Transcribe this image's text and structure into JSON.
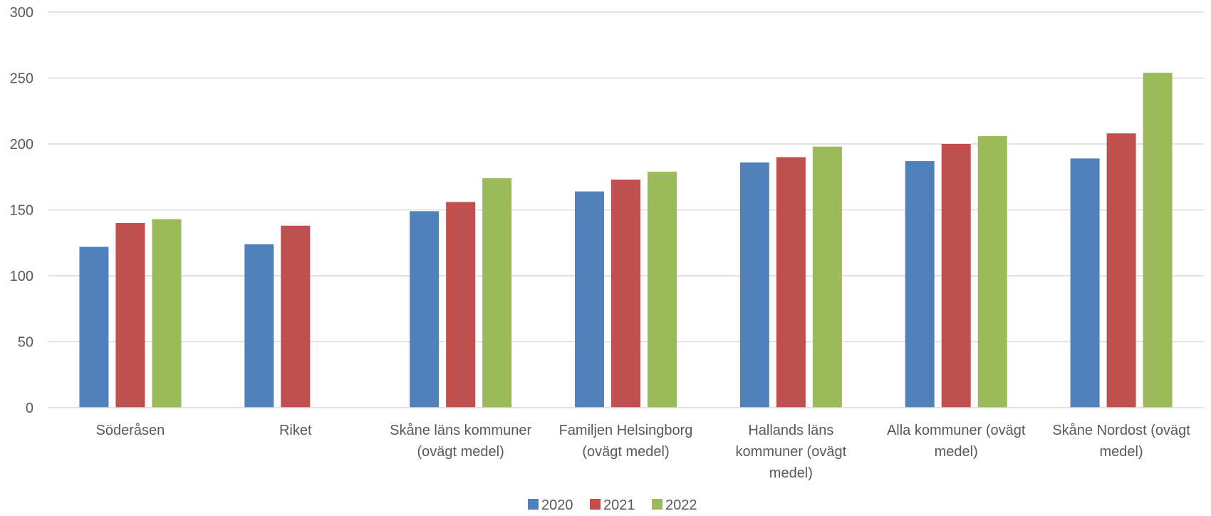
{
  "chart_data": {
    "type": "bar",
    "title": "",
    "xlabel": "",
    "ylabel": "",
    "ylim": [
      0,
      300
    ],
    "yticks": [
      0,
      50,
      100,
      150,
      200,
      250,
      300
    ],
    "grid": true,
    "legend_position": "bottom",
    "categories": [
      [
        "Söderåsen"
      ],
      [
        "Riket"
      ],
      [
        "Skåne läns kommuner",
        "(ovägt medel)"
      ],
      [
        "Familjen Helsingborg",
        "(ovägt medel)"
      ],
      [
        "Hallands läns",
        "kommuner (ovägt",
        "medel)"
      ],
      [
        "Alla kommuner (ovägt",
        "medel)"
      ],
      [
        "Skåne Nordost (ovägt",
        "medel)"
      ]
    ],
    "series": [
      {
        "name": "2020",
        "color": "#4F81BD",
        "values": [
          122,
          124,
          149,
          164,
          186,
          187,
          189
        ]
      },
      {
        "name": "2021",
        "color": "#C0504D",
        "values": [
          140,
          138,
          156,
          173,
          190,
          200,
          208
        ]
      },
      {
        "name": "2022",
        "color": "#9BBB59",
        "values": [
          143,
          null,
          174,
          179,
          198,
          206,
          254
        ]
      }
    ]
  }
}
